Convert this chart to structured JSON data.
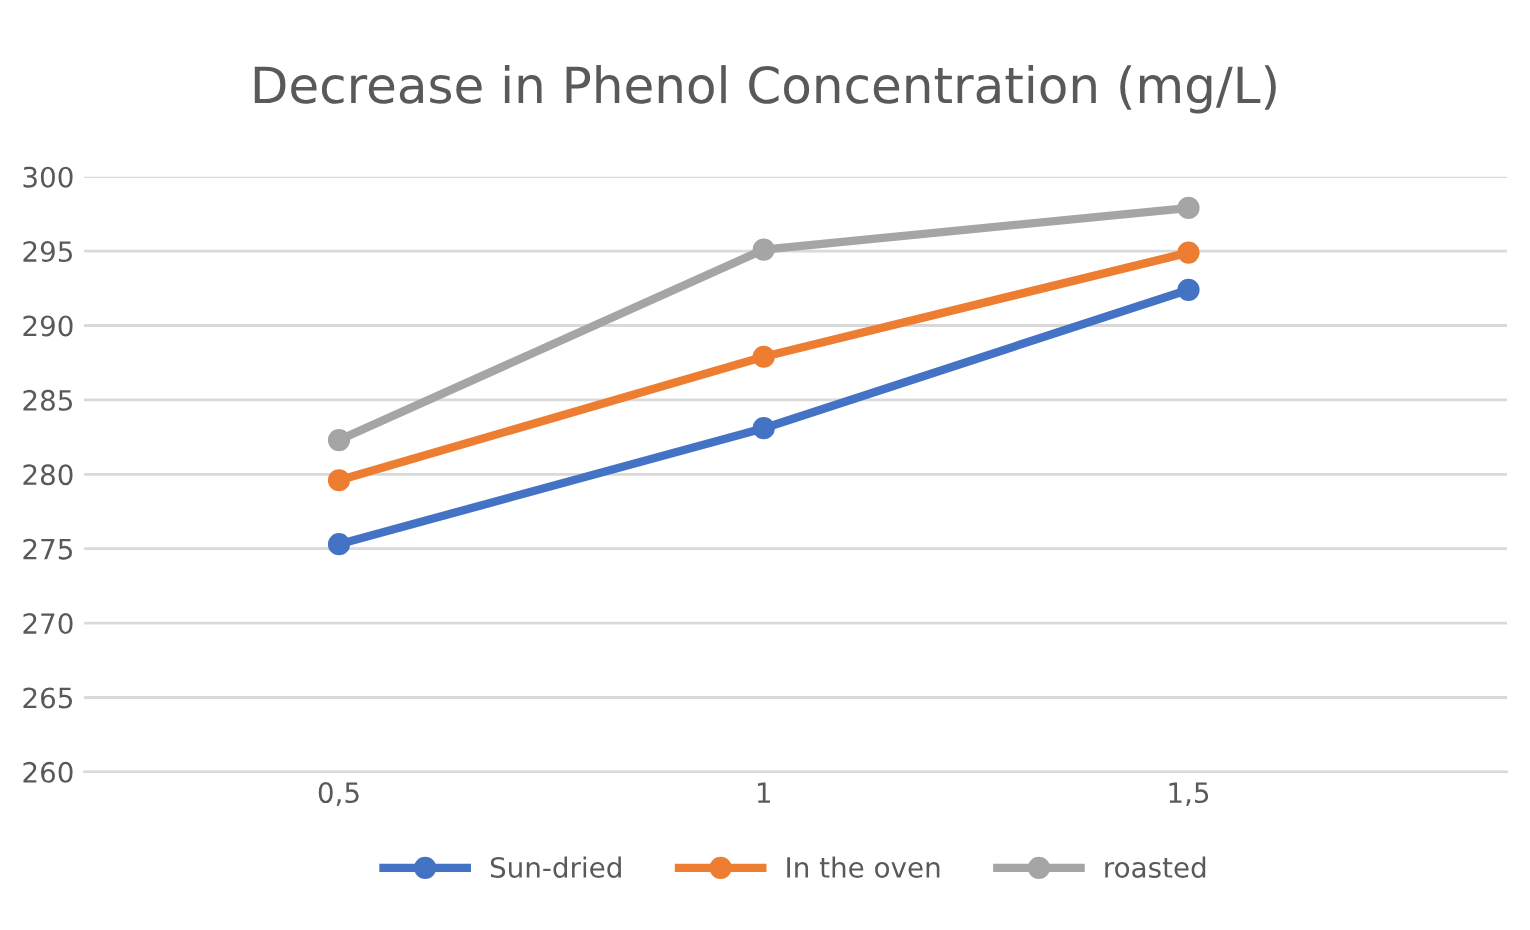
{
  "chart_data": {
    "type": "line",
    "title": "Decrease in Phenol Concentration (mg/L)",
    "categories": [
      "0,5",
      "1",
      "1,5"
    ],
    "series": [
      {
        "name": "Sun-dried",
        "color": "#4472c4",
        "values": [
          275.3,
          283.1,
          292.4
        ]
      },
      {
        "name": "In the oven",
        "color": "#ed7d31",
        "values": [
          279.6,
          287.9,
          294.9
        ]
      },
      {
        "name": "roasted",
        "color": "#a5a5a5",
        "values": [
          282.3,
          295.1,
          297.9
        ]
      }
    ],
    "ylim": [
      260,
      300
    ],
    "yticks": [
      260,
      265,
      270,
      275,
      280,
      285,
      290,
      295,
      300
    ],
    "grid": "y",
    "legend": "bottom",
    "marker": "circle",
    "line_style": "solid"
  }
}
